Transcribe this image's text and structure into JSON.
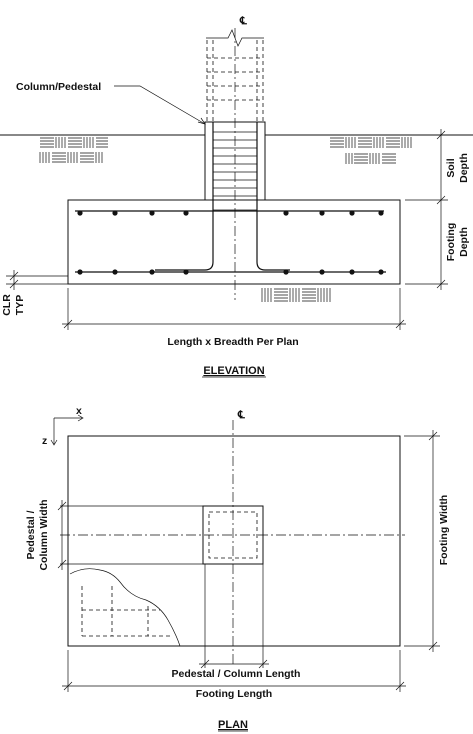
{
  "labels": {
    "centerline_symbol": "℄",
    "column_pedestal": "Column/Pedestal",
    "soil_depth": "Soil Depth",
    "soil_depth_line1": "Soil",
    "soil_depth_line2": "Depth",
    "footing_depth_line1": "Footing",
    "footing_depth_line2": "Depth",
    "clr_typ_line1": "CLR",
    "clr_typ_line2": "TYP",
    "length_breadth": "Length x Breadth Per Plan",
    "elevation_title": "ELEVATION",
    "axis_x": "x",
    "axis_z": "z",
    "pedestal_width_line1": "Pedestal /",
    "pedestal_width_line2": "Column Width",
    "footing_width": "Footing Width",
    "pedestal_length": "Pedestal / Column Length",
    "footing_length": "Footing Length",
    "plan_title": "PLAN"
  }
}
